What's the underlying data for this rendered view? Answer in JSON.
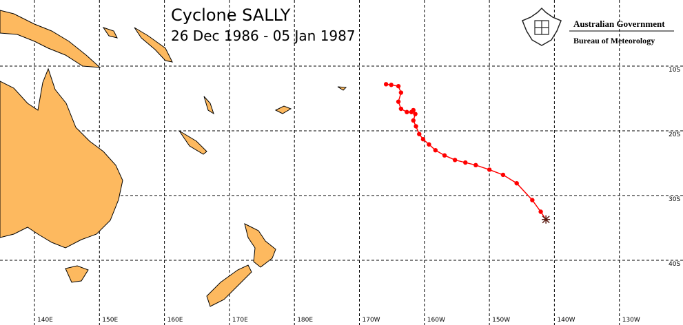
{
  "title": "Cyclone SALLY",
  "subtitle": "26 Dec 1986 - 05 Jan 1987",
  "branding": {
    "government": "Australian Government",
    "agency": "Bureau of Meteorology"
  },
  "lon_grid": [
    {
      "value": 140,
      "label": "140E"
    },
    {
      "value": 150,
      "label": "150E"
    },
    {
      "value": 160,
      "label": "160E"
    },
    {
      "value": 170,
      "label": "170E"
    },
    {
      "value": 180,
      "label": "180E"
    },
    {
      "value": 190,
      "label": "170W"
    },
    {
      "value": 200,
      "label": "160W"
    },
    {
      "value": 210,
      "label": "150W"
    },
    {
      "value": 220,
      "label": "140W"
    },
    {
      "value": 230,
      "label": "130W"
    }
  ],
  "lat_grid": [
    {
      "value": -10,
      "label": "10S"
    },
    {
      "value": -20,
      "label": "20S"
    },
    {
      "value": -30,
      "label": "30S"
    },
    {
      "value": -40,
      "label": "40S"
    }
  ],
  "track": {
    "color": "#ff0000",
    "lon": [
      194.1,
      194.9,
      196.0,
      196.4,
      196.0,
      196.4,
      197.3,
      198.0,
      198.3,
      198.6,
      198.3,
      198.7,
      199.2,
      199.8,
      200.7,
      201.7,
      203.1,
      204.7,
      206.3,
      207.9,
      210.0,
      212.1,
      214.2,
      216.6,
      217.9,
      218.7
    ],
    "lat": [
      -12.8,
      -12.9,
      -13.1,
      -14.1,
      -15.5,
      -16.6,
      -17.1,
      -17.1,
      -16.8,
      -17.4,
      -18.4,
      -19.3,
      -20.5,
      -21.3,
      -22.1,
      -23.0,
      -23.8,
      -24.5,
      -24.9,
      -25.3,
      -26.0,
      -26.8,
      -28.1,
      -30.7,
      -32.5,
      -33.7
    ]
  }
}
